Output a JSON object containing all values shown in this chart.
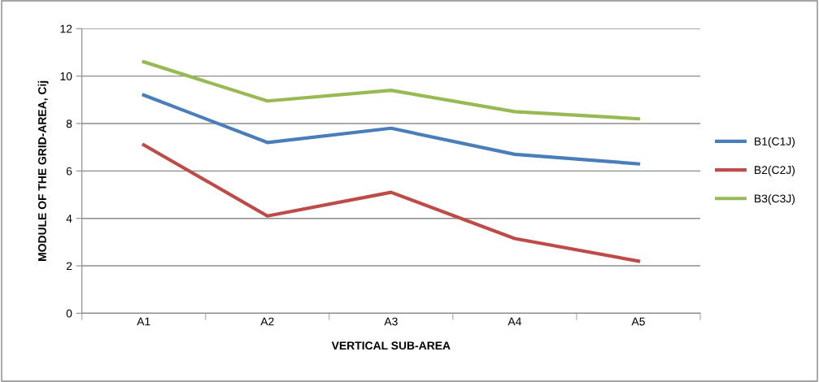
{
  "chart_data": {
    "type": "line",
    "xlabel": "VERTICAL SUB-AREA",
    "ylabel": "MODULE OF THE GRID-AREA, Cij",
    "categories": [
      "A1",
      "A2",
      "A3",
      "A4",
      "A5"
    ],
    "series": [
      {
        "name": "B1(C1J)",
        "color": "#4a7ebb",
        "values": [
          9.2,
          7.2,
          7.8,
          6.7,
          6.3
        ]
      },
      {
        "name": "B2(C2J)",
        "color": "#be4b48",
        "values": [
          7.1,
          4.1,
          5.1,
          3.15,
          2.2
        ]
      },
      {
        "name": "B3(C3J)",
        "color": "#98b954",
        "values": [
          10.6,
          8.95,
          9.4,
          8.5,
          8.2
        ]
      }
    ],
    "ylim": [
      0,
      12
    ],
    "yticks": [
      0,
      2,
      4,
      6,
      8,
      10,
      12
    ],
    "grid": "y",
    "legend": "right",
    "marker": "none",
    "line_style": "solid"
  }
}
